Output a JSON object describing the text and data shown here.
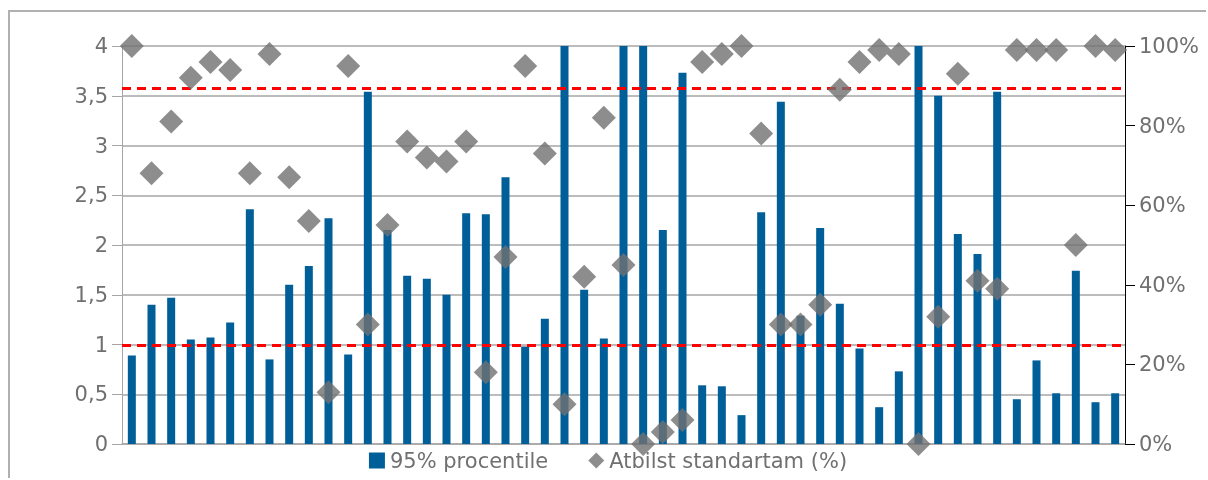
{
  "chart_data": {
    "type": "bar",
    "categories": [
      null,
      null,
      null,
      null,
      null,
      null,
      null,
      null,
      null,
      null,
      null,
      null,
      null,
      null,
      null,
      null,
      null,
      null,
      null,
      null,
      null,
      null,
      null,
      null,
      null,
      null,
      null,
      null,
      null,
      null,
      null,
      null,
      null,
      null,
      null,
      null,
      null,
      null,
      null,
      null,
      null,
      null,
      null,
      null,
      null,
      null,
      null,
      null,
      null,
      null,
      null
    ],
    "series": [
      {
        "name": "95% procentile",
        "color": "#005f99",
        "values": [
          0.89,
          1.4,
          1.47,
          1.05,
          1.07,
          1.22,
          2.36,
          0.85,
          1.6,
          1.79,
          2.27,
          0.9,
          3.54,
          2.15,
          1.69,
          1.66,
          1.5,
          2.32,
          2.31,
          2.68,
          0.98,
          1.26,
          4.0,
          1.55,
          1.06,
          4.0,
          4.0,
          2.15,
          3.73,
          0.59,
          0.58,
          0.29,
          2.33,
          3.44,
          1.29,
          2.17,
          1.41,
          0.96,
          0.37,
          0.73,
          4.0,
          3.5,
          2.11,
          1.91,
          3.54,
          0.45,
          0.84,
          0.51,
          1.74,
          0.42,
          0.51
        ]
      },
      {
        "name": "Atbilst standartam (%)",
        "type": "scatter",
        "axis": "y2",
        "marker": "diamond",
        "color": "#707070",
        "values": [
          100,
          68,
          81,
          92,
          96,
          94,
          68,
          98,
          67,
          56,
          13,
          95,
          30,
          55,
          76,
          72,
          71,
          76,
          18,
          47,
          95,
          73,
          10,
          42,
          82,
          45,
          0,
          3,
          6,
          96,
          98,
          100,
          78,
          30,
          30,
          35,
          89,
          96,
          99,
          98,
          0,
          32,
          93,
          41,
          39,
          99,
          99,
          99,
          50,
          100,
          99
        ]
      }
    ],
    "ylim": [
      0,
      4
    ],
    "yticks": [
      0,
      {
        "value": 0.5,
        "label": "0,5"
      },
      1,
      {
        "value": 1.5,
        "label": "1,5"
      },
      2,
      {
        "value": 2.5,
        "label": "2,5"
      },
      3,
      {
        "value": 3.5,
        "label": "3,5"
      },
      4
    ],
    "y2lim": [
      0,
      100
    ],
    "y2ticks": [
      {
        "value": 0,
        "label": "0%"
      },
      {
        "value": 20,
        "label": "20%"
      },
      {
        "value": 40,
        "label": "40%"
      },
      {
        "value": 60,
        "label": "60%"
      },
      {
        "value": 80,
        "label": "80%"
      },
      {
        "value": 100,
        "label": "100%"
      }
    ],
    "ref_lines": [
      {
        "axis": "y",
        "value": 3.58,
        "color": "#ff0000",
        "line_style": "dashed"
      },
      {
        "axis": "y",
        "value": 0.99,
        "color": "#ff0000",
        "line_style": "dashed"
      }
    ],
    "grid": "y",
    "legend": "bottom"
  }
}
